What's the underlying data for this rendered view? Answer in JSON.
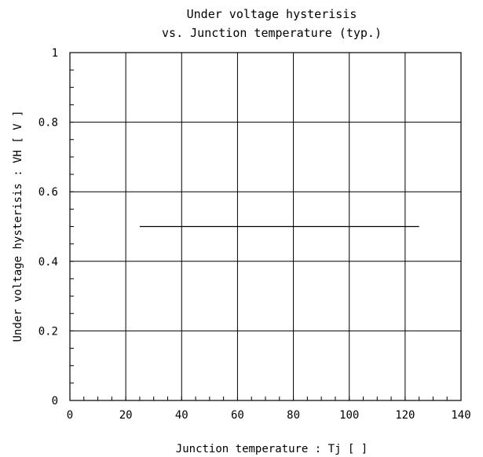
{
  "chart_data": {
    "type": "line",
    "title": "Under voltage hysterisis",
    "subtitle": "vs. Junction temperature (typ.)",
    "xlabel": "Junction temperature : Tj [    ]",
    "ylabel": "Under voltage hysterisis : VH [ V ]",
    "xlim": [
      0,
      140
    ],
    "ylim": [
      0,
      1
    ],
    "xticks": [
      0,
      20,
      40,
      60,
      80,
      100,
      120,
      140
    ],
    "xtick_labels": [
      "0",
      "20",
      "40",
      "60",
      "80",
      "100",
      "120",
      "140"
    ],
    "yticks": [
      0,
      0.2,
      0.4,
      0.6,
      0.8,
      1
    ],
    "ytick_labels": [
      "0",
      "0.2",
      "0.4",
      "0.6",
      "0.8",
      "1"
    ],
    "grid": true,
    "series": [
      {
        "x": [
          25,
          125
        ],
        "y": [
          0.5,
          0.5
        ]
      }
    ]
  }
}
